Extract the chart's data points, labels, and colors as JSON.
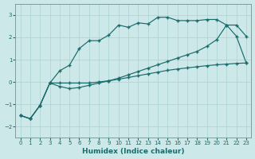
{
  "xlabel": "Humidex (Indice chaleur)",
  "background_color": "#cce8e8",
  "grid_color": "#b0d4d4",
  "line_color": "#1a6b6b",
  "xlim": [
    -0.5,
    23.5
  ],
  "ylim": [
    -2.5,
    3.5
  ],
  "yticks": [
    -2,
    -1,
    0,
    1,
    2,
    3
  ],
  "xticks": [
    0,
    1,
    2,
    3,
    4,
    5,
    6,
    7,
    8,
    9,
    10,
    11,
    12,
    13,
    14,
    15,
    16,
    17,
    18,
    19,
    20,
    21,
    22,
    23
  ],
  "series1_x": [
    0,
    1,
    2,
    3,
    4,
    5,
    6,
    7,
    8,
    9,
    10,
    11,
    12,
    13,
    14,
    15,
    16,
    17,
    18,
    19,
    20,
    21,
    22,
    23
  ],
  "series1_y": [
    -1.5,
    -1.65,
    -1.05,
    -0.05,
    0.5,
    0.75,
    1.5,
    1.85,
    1.85,
    2.1,
    2.55,
    2.45,
    2.65,
    2.6,
    2.9,
    2.9,
    2.75,
    2.75,
    2.75,
    2.8,
    2.8,
    2.55,
    2.55,
    2.05
  ],
  "series2_x": [
    0,
    1,
    2,
    3,
    4,
    5,
    6,
    7,
    8,
    9,
    10,
    11,
    12,
    13,
    14,
    15,
    16,
    17,
    18,
    19,
    20,
    21,
    22,
    23
  ],
  "series2_y": [
    -1.5,
    -1.65,
    -1.05,
    -0.05,
    -0.05,
    -0.05,
    -0.05,
    -0.05,
    0.0,
    0.05,
    0.12,
    0.2,
    0.28,
    0.36,
    0.44,
    0.52,
    0.58,
    0.63,
    0.68,
    0.73,
    0.77,
    0.8,
    0.83,
    0.85
  ],
  "series3_x": [
    0,
    1,
    2,
    3,
    4,
    5,
    6,
    7,
    8,
    9,
    10,
    11,
    12,
    13,
    14,
    15,
    16,
    17,
    18,
    19,
    20,
    21,
    22,
    23
  ],
  "series3_y": [
    -1.5,
    -1.65,
    -1.05,
    -0.05,
    -0.2,
    -0.3,
    -0.25,
    -0.15,
    -0.05,
    0.05,
    0.17,
    0.32,
    0.47,
    0.62,
    0.77,
    0.92,
    1.07,
    1.22,
    1.37,
    1.6,
    1.9,
    2.55,
    2.05,
    0.85
  ]
}
